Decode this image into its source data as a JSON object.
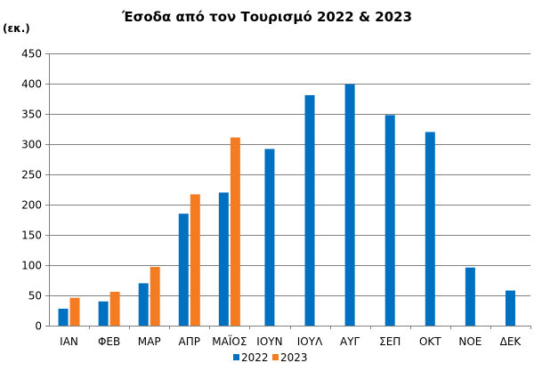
{
  "colors": {
    "series_2022": "#0070C0",
    "series_2023": "#F47B20",
    "grid": "#808080",
    "axis": "#808080"
  },
  "chart_data": {
    "type": "bar",
    "title": "Έσοδα από τον Τουρισμό 2022 & 2023",
    "unit_label": "(εκ.)",
    "xlabel": "",
    "ylabel": "",
    "categories": [
      "ΙΑΝ",
      "ΦΕΒ",
      "ΜΑΡ",
      "ΑΠΡ",
      "ΜΑΪΟΣ",
      "ΙΟΥΝ",
      "ΙΟΥΛ",
      "ΑΥΓ",
      "ΣΕΠ",
      "ΟΚΤ",
      "ΝΟΕ",
      "ΔΕΚ"
    ],
    "series": [
      {
        "name": "2022",
        "color": "#0070C0",
        "values": [
          28,
          40,
          70,
          185,
          220,
          292,
          381,
          399,
          348,
          320,
          96,
          58
        ]
      },
      {
        "name": "2023",
        "color": "#F47B20",
        "values": [
          46,
          56,
          97,
          217,
          311,
          null,
          null,
          null,
          null,
          null,
          null,
          null
        ]
      }
    ],
    "ylim": [
      0,
      450
    ],
    "yticks": [
      0,
      50,
      100,
      150,
      200,
      250,
      300,
      350,
      400,
      450
    ],
    "grid": true,
    "legend_position": "bottom"
  }
}
